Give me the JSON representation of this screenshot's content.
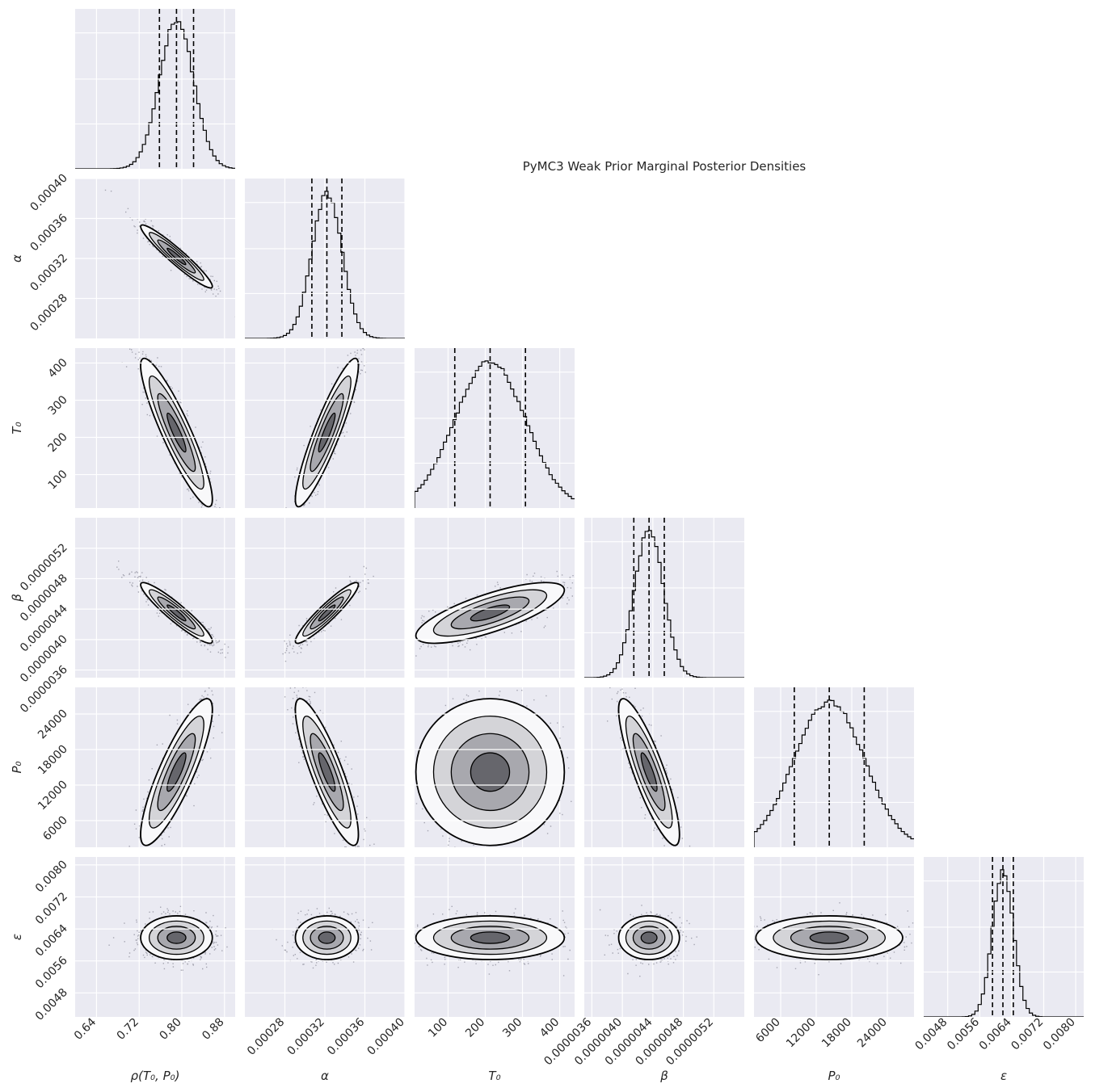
{
  "title": "PyMC3 Weak Prior Marginal Posterior Densities",
  "colors": {
    "panel_bg": "#eaeaf2",
    "grid": "#ffffff",
    "ink": "#000000",
    "text": "#262626"
  },
  "chart_data": {
    "type": "corner",
    "title": "PyMC3 Weak Prior Marginal Posterior Densities",
    "grid": true,
    "quantile_lines": "dashed",
    "parameters": [
      {
        "key": "rho",
        "label": "ρ(T₀, P₀)",
        "range": [
          0.6,
          0.9
        ],
        "ticks": [
          0.64,
          0.72,
          0.8,
          0.88
        ],
        "tick_labels": [
          "0.64",
          "0.72",
          "0.80",
          "0.88"
        ],
        "mean": 0.79,
        "sd": 0.032,
        "quantiles": [
          0.758,
          0.79,
          0.822
        ],
        "show_y_label": false
      },
      {
        "key": "alpha",
        "label": "α",
        "range": [
          0.00024,
          0.0004
        ],
        "ticks": [
          0.00028,
          0.00032,
          0.00036,
          0.0004
        ],
        "tick_labels": [
          "0.00028",
          "0.00032",
          "0.00036",
          "0.00040"
        ],
        "mean": 0.000322,
        "sd": 1.5e-05,
        "quantiles": [
          0.000307,
          0.000322,
          0.000337
        ],
        "show_y_label": true
      },
      {
        "key": "T0",
        "label": "T₀",
        "range": [
          10,
          440
        ],
        "ticks": [
          100,
          200,
          300,
          400
        ],
        "tick_labels": [
          "100",
          "200",
          "300",
          "400"
        ],
        "mean": 213,
        "sd": 95,
        "quantiles": [
          118,
          213,
          308
        ],
        "show_y_label": true
      },
      {
        "key": "beta",
        "label": "β",
        "range": [
          3.5e-06,
          5.6e-06
        ],
        "ticks": [
          3.6e-06,
          4e-06,
          4.4e-06,
          4.8e-06,
          5.2e-06
        ],
        "tick_labels": [
          "0.0000036",
          "0.0000040",
          "0.0000044",
          "0.0000048",
          "0.0000052"
        ],
        "mean": 4.35e-06,
        "sd": 1.9e-07,
        "quantiles": [
          4.15e-06,
          4.35e-06,
          4.55e-06
        ],
        "show_y_label": true
      },
      {
        "key": "P0",
        "label": "P₀",
        "range": [
          1500,
          28500
        ],
        "ticks": [
          6000,
          12000,
          18000,
          24000
        ],
        "tick_labels": [
          "6000",
          "12000",
          "18000",
          "24000"
        ],
        "mean": 14200,
        "sd": 5900,
        "quantiles": [
          8300,
          14200,
          20100
        ],
        "show_y_label": true
      },
      {
        "key": "eps",
        "label": "ε",
        "range": [
          0.0042,
          0.0082
        ],
        "ticks": [
          0.0048,
          0.0056,
          0.0064,
          0.0072,
          0.008
        ],
        "tick_labels": [
          "0.0048",
          "0.0056",
          "0.0064",
          "0.0072",
          "0.0080"
        ],
        "mean": 0.00618,
        "sd": 0.00026,
        "quantiles": [
          0.00592,
          0.00618,
          0.00644
        ],
        "show_y_label": true
      }
    ],
    "correlations": [
      [
        1.0,
        -0.95,
        -0.9,
        -0.93,
        0.85,
        0.0
      ],
      [
        -0.95,
        1.0,
        0.9,
        0.93,
        -0.85,
        0.0
      ],
      [
        -0.9,
        0.9,
        1.0,
        0.75,
        0.0,
        0.0
      ],
      [
        -0.93,
        0.93,
        0.75,
        1.0,
        -0.85,
        0.0
      ],
      [
        0.85,
        -0.85,
        0.0,
        -0.85,
        1.0,
        0.0
      ],
      [
        0.0,
        0.0,
        0.0,
        0.0,
        0.0,
        1.0
      ]
    ]
  }
}
